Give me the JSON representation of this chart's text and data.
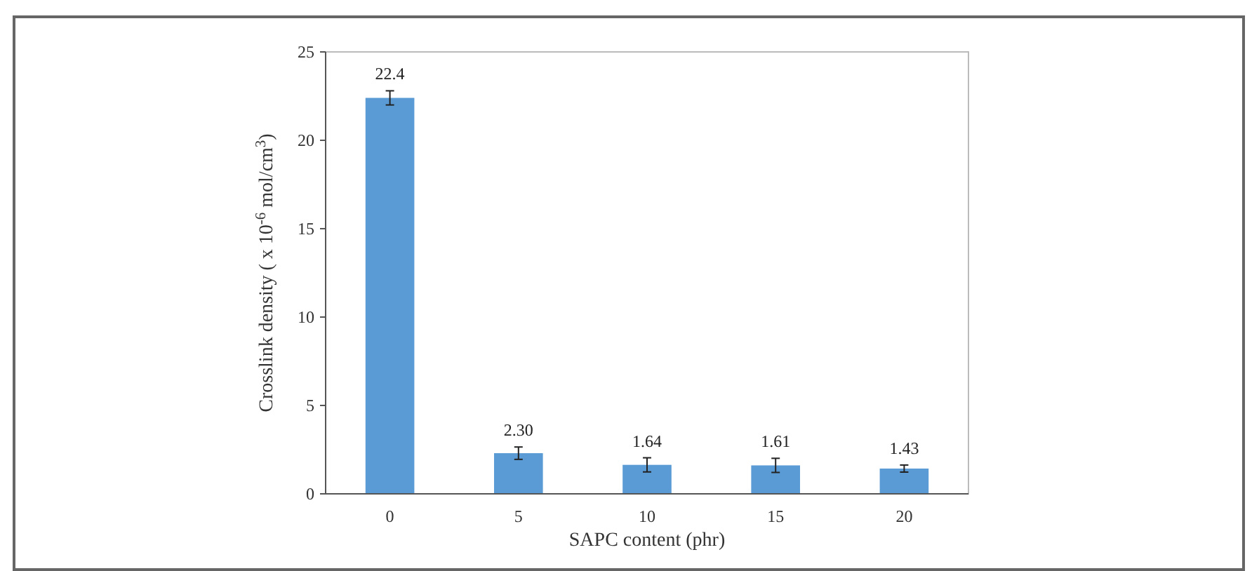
{
  "chart_data": {
    "type": "bar",
    "xlabel": "SAPC content (phr)",
    "ylabel": "Crosslink density ( x 10$^{-6}$ mol/cm$^{3}$)",
    "categories": [
      "0",
      "5",
      "10",
      "15",
      "20"
    ],
    "values": [
      22.4,
      2.3,
      1.64,
      1.61,
      1.43
    ],
    "value_labels": [
      "22.4",
      "2.30",
      "1.64",
      "1.61",
      "1.43"
    ],
    "errors": [
      0.4,
      0.35,
      0.4,
      0.4,
      0.2
    ],
    "color": "#5b9bd5",
    "ylim": [
      0,
      25
    ],
    "yticks": [
      0,
      5,
      10,
      15,
      20,
      25
    ],
    "grid": false
  }
}
